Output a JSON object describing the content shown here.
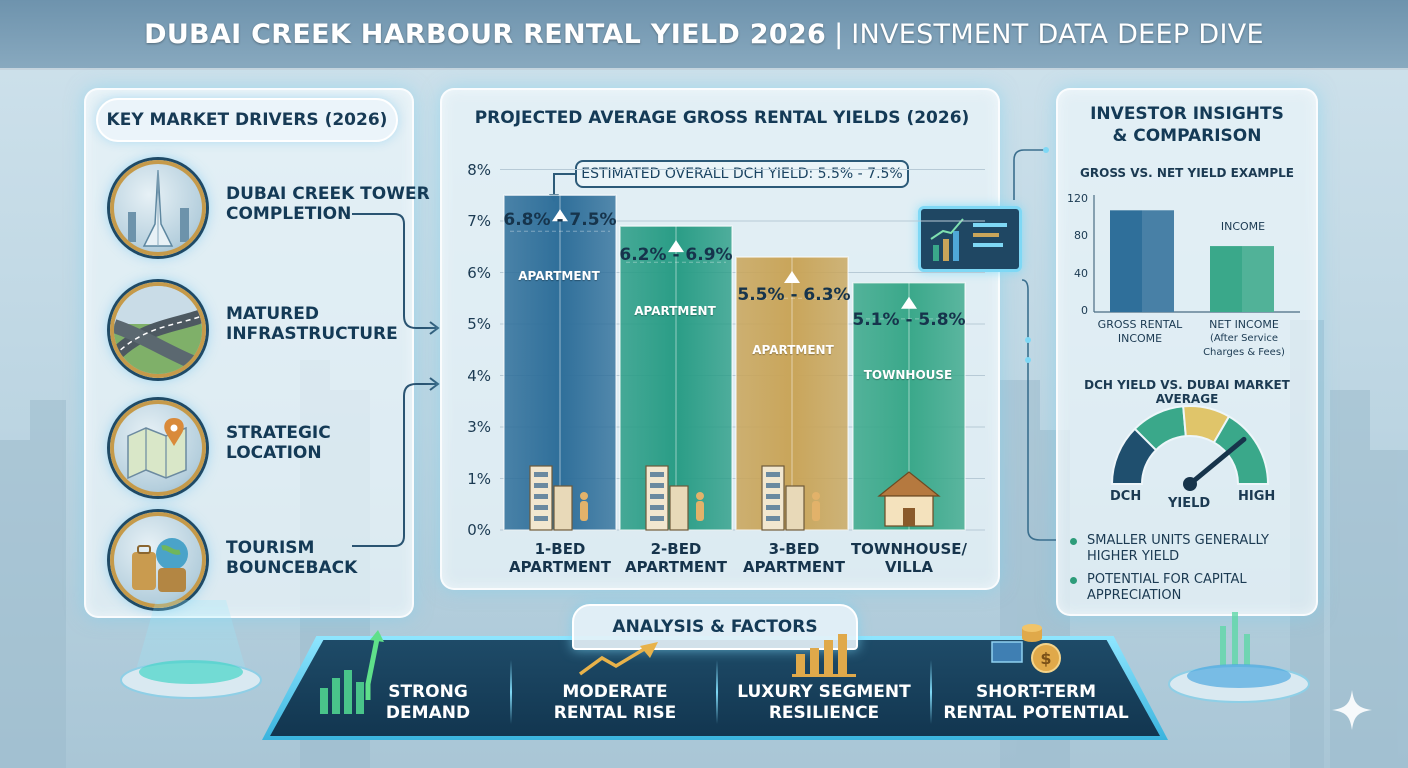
{
  "title": {
    "main": "DUBAI CREEK HARBOUR RENTAL YIELD 2026",
    "separator": "|",
    "sub": "INVESTMENT DATA DEEP DIVE"
  },
  "drivers": {
    "heading": "KEY MARKET DRIVERS (2026)",
    "items": [
      {
        "line1": "DUBAI CREEK TOWER",
        "line2": "COMPLETION",
        "icon": "tower-icon"
      },
      {
        "line1": "MATURED",
        "line2": "INFRASTRUCTURE",
        "icon": "highway-icon"
      },
      {
        "line1": "STRATEGIC",
        "line2": "LOCATION",
        "icon": "map-pin-icon"
      },
      {
        "line1": "TOURISM",
        "line2": "BOUNCEBACK",
        "icon": "luggage-globe-icon"
      }
    ]
  },
  "chart_data": [
    {
      "type": "bar",
      "title": "PROJECTED AVERAGE GROSS RENTAL YIELDS (2026)",
      "annotation": "ESTIMATED OVERALL DCH YIELD: 5.5% - 7.5%",
      "ytick_labels": [
        "0%",
        "1%",
        "3%",
        "4%",
        "5%",
        "6%",
        "7%",
        "8%"
      ],
      "categories": [
        {
          "line1": "1-BED",
          "line2": "APARTMENT"
        },
        {
          "line1": "2-BED",
          "line2": "APARTMENT"
        },
        {
          "line1": "3-BED",
          "line2": "APARTMENT"
        },
        {
          "line1": "TOWNHOUSE/",
          "line2": "VILLA"
        }
      ],
      "ranges": [
        {
          "low": 6.8,
          "high": 7.5,
          "label": "6.8% - 7.5%",
          "bar_label": "APARTMENT",
          "color": "#2f6f9a"
        },
        {
          "low": 6.2,
          "high": 6.9,
          "label": "6.2% - 6.9%",
          "bar_label": "APARTMENT",
          "color": "#2a9d86"
        },
        {
          "low": 5.5,
          "high": 6.3,
          "label": "5.5% - 6.3%",
          "bar_label": "APARTMENT",
          "color": "#c9a55a"
        },
        {
          "low": 5.1,
          "high": 5.8,
          "label": "5.1% - 5.8%",
          "bar_label": "TOWNHOUSE",
          "color": "#3aa88a"
        }
      ],
      "grid": true
    },
    {
      "type": "bar",
      "title": "GROSS VS. NET YIELD EXAMPLE",
      "ytick_labels": [
        "0",
        "40",
        "80",
        "120"
      ],
      "ylim": [
        0,
        120
      ],
      "categories": [
        {
          "line1": "GROSS RENTAL",
          "line2": "INCOME",
          "line3": ""
        },
        {
          "line1": "NET INCOME",
          "line2": "(After Service",
          "line3": "Charges & Fees)"
        }
      ],
      "values": [
        108,
        70
      ],
      "bar_annotation": "INCOME",
      "colors": [
        "#2f6f9a",
        "#3aa88a"
      ]
    },
    {
      "type": "gauge",
      "title": "DCH YIELD VS. DUBAI MARKET AVERAGE",
      "left_label": "DCH",
      "center_label": "YIELD",
      "right_label": "HIGH",
      "needle_fraction": 0.78
    }
  ],
  "insights": {
    "title_line1": "INVESTOR INSIGHTS",
    "title_line2": "& COMPARISON",
    "bullets": [
      {
        "line1": "SMALLER UNITS GENERALLY",
        "line2": "HIGHER YIELD"
      },
      {
        "line1": "POTENTIAL FOR CAPITAL",
        "line2": "APPRECIATION"
      }
    ]
  },
  "factors": {
    "heading": "ANALYSIS & FACTORS",
    "items": [
      {
        "line1": "STRONG",
        "line2": "DEMAND",
        "icon": "rising-bars-icon"
      },
      {
        "line1": "MODERATE",
        "line2": "RENTAL RISE",
        "icon": "trend-up-icon"
      },
      {
        "line1": "LUXURY SEGMENT",
        "line2": "RESILIENCE",
        "icon": "gold-bars-icon"
      },
      {
        "line1": "SHORT-TERM",
        "line2": "RENTAL POTENTIAL",
        "icon": "coins-icon"
      }
    ]
  },
  "colors": {
    "navy": "#143a56",
    "blue_bar": "#2f6f9a",
    "teal_bar": "#2a9d86",
    "gold_bar": "#c9a55a",
    "green_bar": "#3aa88a",
    "glow": "#7fd8f5"
  }
}
